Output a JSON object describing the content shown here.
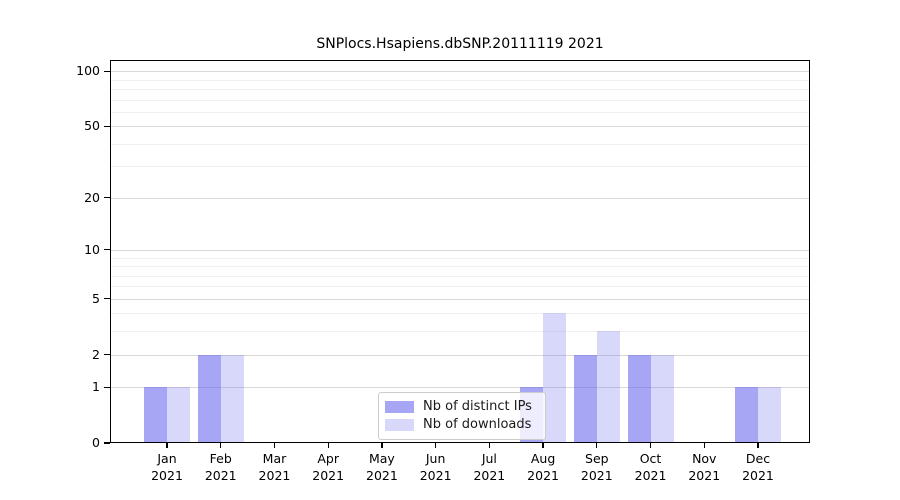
{
  "title": "SNPlocs.Hsapiens.dbSNP.20111119 2021",
  "chart_data": {
    "type": "bar",
    "title": "SNPlocs.Hsapiens.dbSNP.20111119 2021",
    "categories": [
      "Jan",
      "Feb",
      "Mar",
      "Apr",
      "May",
      "Jun",
      "Jul",
      "Aug",
      "Sep",
      "Oct",
      "Nov",
      "Dec"
    ],
    "category_year": "2021",
    "series": [
      {
        "name": "Nb of distinct IPs",
        "fill": "rgba(92,92,237,0.55)",
        "values": [
          1,
          2,
          0,
          0,
          0,
          0,
          0,
          1,
          2,
          2,
          0,
          1
        ]
      },
      {
        "name": "Nb of downloads",
        "fill": "rgba(92,92,237,0.24)",
        "values": [
          1,
          2,
          0,
          0,
          0,
          0,
          0,
          4,
          3,
          2,
          0,
          1
        ]
      }
    ],
    "scale": "log1p",
    "y_ticks": [
      0,
      1,
      2,
      5,
      10,
      20,
      50,
      100
    ],
    "y_minor_gridlines": [
      3,
      4,
      6,
      7,
      8,
      9,
      30,
      40,
      60,
      70,
      80,
      90
    ],
    "ylim": [
      0,
      115
    ],
    "xlabel": "",
    "ylabel": "",
    "grid": true,
    "legend_position": "inside-bottom-center",
    "colors": {
      "bar_distinct_ips": "#a6a6f5",
      "bar_downloads": "#d9d9f9",
      "grid_major": "#d9d9d9",
      "grid_minor": "#f0f0f0",
      "axis": "#000000"
    }
  }
}
